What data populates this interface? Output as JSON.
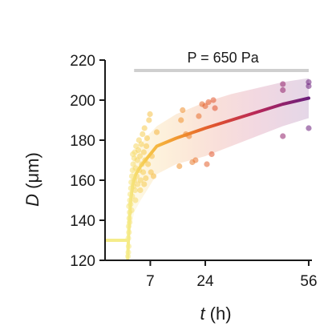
{
  "chart_data": {
    "type": "scatter",
    "title": "",
    "xlabel": {
      "var": "t",
      "unit": " (h)"
    },
    "ylabel": {
      "var": "D",
      "unit": " (μm)"
    },
    "xlim": [
      -7,
      57
    ],
    "ylim": [
      120,
      222
    ],
    "x_ticks": [
      {
        "value": 7,
        "label": "7"
      },
      {
        "value": 24,
        "label": "24"
      },
      {
        "value": 56,
        "label": "56"
      }
    ],
    "y_ticks": [
      {
        "value": 120,
        "label": "120"
      },
      {
        "value": 140,
        "label": "140"
      },
      {
        "value": 160,
        "label": "160"
      },
      {
        "value": 180,
        "label": "180"
      },
      {
        "value": 200,
        "label": "200"
      },
      {
        "value": 220,
        "label": "220"
      }
    ],
    "annotation": {
      "text": "P = 650 Pa",
      "y": 218,
      "x_range": [
        0,
        56
      ]
    },
    "baseline": {
      "x": [
        -7,
        0
      ],
      "y": 130
    },
    "colormap": [
      "#f5ec8a",
      "#f6c84c",
      "#f29a2e",
      "#e0522d",
      "#b5245b",
      "#6b1f7c"
    ],
    "mean_line": [
      {
        "x": 0,
        "y": 121
      },
      {
        "x": 0.4,
        "y": 138
      },
      {
        "x": 0.9,
        "y": 150
      },
      {
        "x": 1.6,
        "y": 158
      },
      {
        "x": 2.5,
        "y": 163
      },
      {
        "x": 4,
        "y": 167
      },
      {
        "x": 6,
        "y": 171
      },
      {
        "x": 9,
        "y": 177
      },
      {
        "x": 15,
        "y": 181
      },
      {
        "x": 24,
        "y": 186
      },
      {
        "x": 30,
        "y": 189
      },
      {
        "x": 40,
        "y": 194
      },
      {
        "x": 48,
        "y": 198
      },
      {
        "x": 56,
        "y": 201
      }
    ],
    "band": [
      {
        "x": 0,
        "lo": 121,
        "hi": 122
      },
      {
        "x": 0.5,
        "lo": 128,
        "hi": 150
      },
      {
        "x": 1,
        "lo": 136,
        "hi": 162
      },
      {
        "x": 2,
        "lo": 144,
        "hi": 172
      },
      {
        "x": 4,
        "lo": 150,
        "hi": 178
      },
      {
        "x": 6,
        "lo": 155,
        "hi": 182
      },
      {
        "x": 9,
        "lo": 163,
        "hi": 187
      },
      {
        "x": 15,
        "lo": 168,
        "hi": 193
      },
      {
        "x": 24,
        "lo": 172,
        "hi": 199
      },
      {
        "x": 32,
        "lo": 177,
        "hi": 203
      },
      {
        "x": 40,
        "lo": 182,
        "hi": 206
      },
      {
        "x": 48,
        "lo": 187,
        "hi": 209
      },
      {
        "x": 56,
        "lo": 191,
        "hi": 211
      }
    ],
    "points": [
      {
        "x": 0.1,
        "y": 122
      },
      {
        "x": 0.2,
        "y": 124
      },
      {
        "x": 0.3,
        "y": 127
      },
      {
        "x": 0.2,
        "y": 131
      },
      {
        "x": 0.4,
        "y": 134
      },
      {
        "x": 0.3,
        "y": 137
      },
      {
        "x": 0.5,
        "y": 141
      },
      {
        "x": 0.6,
        "y": 144
      },
      {
        "x": 0.4,
        "y": 147
      },
      {
        "x": 0.7,
        "y": 150
      },
      {
        "x": 0.8,
        "y": 153
      },
      {
        "x": 0.6,
        "y": 139
      },
      {
        "x": 1.0,
        "y": 156
      },
      {
        "x": 1.1,
        "y": 159
      },
      {
        "x": 0.9,
        "y": 148
      },
      {
        "x": 1.2,
        "y": 145
      },
      {
        "x": 1.3,
        "y": 162
      },
      {
        "x": 1.5,
        "y": 165
      },
      {
        "x": 1.4,
        "y": 152
      },
      {
        "x": 1.7,
        "y": 168
      },
      {
        "x": 1.8,
        "y": 157
      },
      {
        "x": 2.0,
        "y": 171
      },
      {
        "x": 2.1,
        "y": 160
      },
      {
        "x": 2.2,
        "y": 174
      },
      {
        "x": 2.4,
        "y": 150
      },
      {
        "x": 2.5,
        "y": 166
      },
      {
        "x": 2.6,
        "y": 177
      },
      {
        "x": 2.8,
        "y": 162
      },
      {
        "x": 3.0,
        "y": 170
      },
      {
        "x": 3.1,
        "y": 158
      },
      {
        "x": 3.3,
        "y": 175
      },
      {
        "x": 3.5,
        "y": 180
      },
      {
        "x": 3.6,
        "y": 165
      },
      {
        "x": 3.8,
        "y": 172
      },
      {
        "x": 4.0,
        "y": 160
      },
      {
        "x": 4.2,
        "y": 178
      },
      {
        "x": 4.4,
        "y": 168
      },
      {
        "x": 4.6,
        "y": 183
      },
      {
        "x": 4.8,
        "y": 164
      },
      {
        "x": 5.0,
        "y": 174
      },
      {
        "x": 5.2,
        "y": 186
      },
      {
        "x": 5.4,
        "y": 170
      },
      {
        "x": 5.6,
        "y": 161
      },
      {
        "x": 5.8,
        "y": 177
      },
      {
        "x": 6.0,
        "y": 181
      },
      {
        "x": 6.3,
        "y": 168
      },
      {
        "x": 6.6,
        "y": 190
      },
      {
        "x": 6.9,
        "y": 193
      },
      {
        "x": 7.2,
        "y": 164
      },
      {
        "x": 7.5,
        "y": 172
      },
      {
        "x": 8.0,
        "y": 162
      },
      {
        "x": 9.0,
        "y": 184
      },
      {
        "x": 2.3,
        "y": 155
      },
      {
        "x": 1.6,
        "y": 173
      },
      {
        "x": 3.9,
        "y": 155
      },
      {
        "x": 5.1,
        "y": 158
      },
      {
        "x": 16,
        "y": 167
      },
      {
        "x": 16.5,
        "y": 190
      },
      {
        "x": 17,
        "y": 195
      },
      {
        "x": 18,
        "y": 183
      },
      {
        "x": 19,
        "y": 182
      },
      {
        "x": 20,
        "y": 169
      },
      {
        "x": 21,
        "y": 170
      },
      {
        "x": 22,
        "y": 192
      },
      {
        "x": 23,
        "y": 198
      },
      {
        "x": 24,
        "y": 197
      },
      {
        "x": 25,
        "y": 199
      },
      {
        "x": 26,
        "y": 173
      },
      {
        "x": 26.5,
        "y": 200
      },
      {
        "x": 27,
        "y": 196
      },
      {
        "x": 24.5,
        "y": 168
      },
      {
        "x": 48,
        "y": 208
      },
      {
        "x": 48,
        "y": 205
      },
      {
        "x": 48,
        "y": 182
      },
      {
        "x": 56,
        "y": 209
      },
      {
        "x": 56,
        "y": 207
      },
      {
        "x": 56,
        "y": 186
      }
    ]
  }
}
